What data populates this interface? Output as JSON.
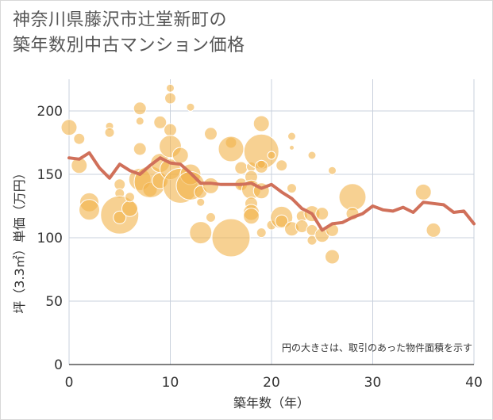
{
  "title_line1": "神奈川県藤沢市辻堂新町の",
  "title_line2": "築年数別中古マンション価格",
  "chart_data": {
    "type": "scatter",
    "xlabel": "築年数（年）",
    "ylabel": "坪（3.3㎡）単価（万円）",
    "xlim": [
      0,
      40
    ],
    "ylim": [
      0,
      225
    ],
    "x_ticks": [
      "0",
      "10",
      "20",
      "30",
      "40"
    ],
    "y_ticks": [
      "0",
      "50",
      "100",
      "150",
      "200"
    ],
    "grid": true,
    "note": "円の大きさは、取引のあった物件面積を示す",
    "bubble_color": "#f2b24a",
    "line_color": "#d0705a",
    "bubbles": [
      {
        "x": 0,
        "y": 187,
        "s": 10
      },
      {
        "x": 1,
        "y": 178,
        "s": 7
      },
      {
        "x": 1,
        "y": 157,
        "s": 10
      },
      {
        "x": 2,
        "y": 128,
        "s": 12
      },
      {
        "x": 2,
        "y": 122,
        "s": 13
      },
      {
        "x": 4,
        "y": 188,
        "s": 5
      },
      {
        "x": 4,
        "y": 183,
        "s": 6
      },
      {
        "x": 5,
        "y": 142,
        "s": 7
      },
      {
        "x": 5,
        "y": 135,
        "s": 6
      },
      {
        "x": 5,
        "y": 118,
        "s": 24
      },
      {
        "x": 5,
        "y": 116,
        "s": 8
      },
      {
        "x": 6,
        "y": 123,
        "s": 10
      },
      {
        "x": 6,
        "y": 132,
        "s": 6
      },
      {
        "x": 7,
        "y": 202,
        "s": 8
      },
      {
        "x": 7,
        "y": 192,
        "s": 5
      },
      {
        "x": 7,
        "y": 170,
        "s": 8
      },
      {
        "x": 7,
        "y": 146,
        "s": 14
      },
      {
        "x": 8,
        "y": 138,
        "s": 9
      },
      {
        "x": 8,
        "y": 144,
        "s": 20
      },
      {
        "x": 9,
        "y": 191,
        "s": 8
      },
      {
        "x": 9,
        "y": 159,
        "s": 12
      },
      {
        "x": 9,
        "y": 145,
        "s": 10
      },
      {
        "x": 10,
        "y": 218,
        "s": 5
      },
      {
        "x": 10,
        "y": 210,
        "s": 7
      },
      {
        "x": 10,
        "y": 185,
        "s": 8
      },
      {
        "x": 10,
        "y": 172,
        "s": 14
      },
      {
        "x": 10,
        "y": 154,
        "s": 13
      },
      {
        "x": 11,
        "y": 165,
        "s": 10
      },
      {
        "x": 11,
        "y": 141,
        "s": 22
      },
      {
        "x": 12,
        "y": 203,
        "s": 5
      },
      {
        "x": 12,
        "y": 150,
        "s": 13
      },
      {
        "x": 12,
        "y": 141,
        "s": 18
      },
      {
        "x": 13,
        "y": 136,
        "s": 8
      },
      {
        "x": 13,
        "y": 128,
        "s": 5
      },
      {
        "x": 13,
        "y": 104,
        "s": 14
      },
      {
        "x": 14,
        "y": 182,
        "s": 8
      },
      {
        "x": 14,
        "y": 141,
        "s": 10
      },
      {
        "x": 14,
        "y": 116,
        "s": 6
      },
      {
        "x": 16,
        "y": 175,
        "s": 7
      },
      {
        "x": 16,
        "y": 170,
        "s": 16
      },
      {
        "x": 16,
        "y": 100,
        "s": 24
      },
      {
        "x": 17,
        "y": 155,
        "s": 8
      },
      {
        "x": 17,
        "y": 141,
        "s": 5
      },
      {
        "x": 17,
        "y": 142,
        "s": 8
      },
      {
        "x": 18,
        "y": 156,
        "s": 6
      },
      {
        "x": 18,
        "y": 148,
        "s": 8
      },
      {
        "x": 18,
        "y": 138,
        "s": 12
      },
      {
        "x": 18,
        "y": 127,
        "s": 8
      },
      {
        "x": 18,
        "y": 120,
        "s": 10
      },
      {
        "x": 18,
        "y": 117,
        "s": 10
      },
      {
        "x": 19,
        "y": 190,
        "s": 10
      },
      {
        "x": 19,
        "y": 168,
        "s": 22
      },
      {
        "x": 19,
        "y": 158,
        "s": 5
      },
      {
        "x": 19,
        "y": 156,
        "s": 8
      },
      {
        "x": 19,
        "y": 137,
        "s": 10
      },
      {
        "x": 19,
        "y": 104,
        "s": 6
      },
      {
        "x": 20,
        "y": 165,
        "s": 5
      },
      {
        "x": 20,
        "y": 110,
        "s": 6
      },
      {
        "x": 21,
        "y": 157,
        "s": 7
      },
      {
        "x": 21,
        "y": 116,
        "s": 14
      },
      {
        "x": 21,
        "y": 113,
        "s": 8
      },
      {
        "x": 22,
        "y": 180,
        "s": 5
      },
      {
        "x": 22,
        "y": 171,
        "s": 3
      },
      {
        "x": 22,
        "y": 139,
        "s": 6
      },
      {
        "x": 22,
        "y": 107,
        "s": 9
      },
      {
        "x": 23,
        "y": 117,
        "s": 7
      },
      {
        "x": 23,
        "y": 109,
        "s": 8
      },
      {
        "x": 24,
        "y": 165,
        "s": 5
      },
      {
        "x": 24,
        "y": 119,
        "s": 10
      },
      {
        "x": 24,
        "y": 106,
        "s": 7
      },
      {
        "x": 24,
        "y": 98,
        "s": 6
      },
      {
        "x": 25,
        "y": 119,
        "s": 8
      },
      {
        "x": 25,
        "y": 102,
        "s": 9
      },
      {
        "x": 26,
        "y": 153,
        "s": 5
      },
      {
        "x": 26,
        "y": 106,
        "s": 8
      },
      {
        "x": 26,
        "y": 85,
        "s": 9
      },
      {
        "x": 28,
        "y": 132,
        "s": 17
      },
      {
        "x": 28,
        "y": 119,
        "s": 8
      },
      {
        "x": 35,
        "y": 136,
        "s": 10
      },
      {
        "x": 36,
        "y": 106,
        "s": 9
      }
    ],
    "trend": {
      "x": [
        0,
        1,
        2,
        3,
        4,
        5,
        6,
        7,
        8,
        9,
        10,
        11,
        12,
        13,
        14,
        15,
        16,
        17,
        18,
        19,
        20,
        21,
        22,
        23,
        24,
        25,
        26,
        27,
        28,
        29,
        30,
        31,
        32,
        33,
        34,
        35,
        36,
        37,
        38,
        39,
        40
      ],
      "y": [
        163,
        162,
        167,
        155,
        147,
        158,
        153,
        150,
        157,
        163,
        159,
        158,
        151,
        143,
        143,
        142,
        142,
        142,
        143,
        139,
        142,
        136,
        131,
        123,
        119,
        106,
        111,
        112,
        116,
        119,
        125,
        122,
        121,
        124,
        120,
        128,
        127,
        126,
        120,
        121,
        111
      ]
    }
  }
}
